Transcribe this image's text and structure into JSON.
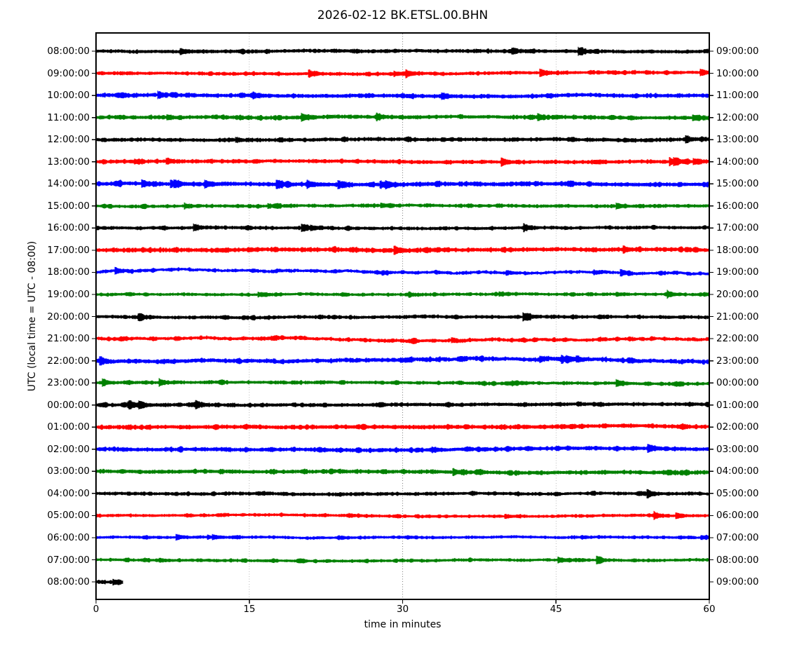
{
  "chart_data": {
    "type": "line",
    "subtype": "helicorder-dayplot-seismogram",
    "title": "2026-02-12 BK.ETSL.00.BHN",
    "date": "2026-02-12",
    "station": "BK.ETSL.00.BHN",
    "xlabel": "time in minutes",
    "ylabel": "UTC (local time = UTC - 08:00)",
    "x_range_minutes": [
      0,
      60
    ],
    "x_ticks": [
      0,
      15,
      30,
      45,
      60
    ],
    "x_gridlines_minutes": [
      15,
      30,
      45
    ],
    "grid_style": "dotted",
    "minutes_per_row": 60,
    "left_axis": "row start time (UTC)",
    "right_axis": "row end time (UTC)",
    "trace_color_cycle": [
      "#000000",
      "#ff0000",
      "#0000ff",
      "#008000"
    ],
    "content": "continuous background seismic noise bands; no large earthquake signals",
    "rows": [
      {
        "start_utc": "08:00:00",
        "end_utc": "09:00:00",
        "color": "#000000",
        "coverage_minutes": 60
      },
      {
        "start_utc": "09:00:00",
        "end_utc": "10:00:00",
        "color": "#ff0000",
        "coverage_minutes": 60
      },
      {
        "start_utc": "10:00:00",
        "end_utc": "11:00:00",
        "color": "#0000ff",
        "coverage_minutes": 60
      },
      {
        "start_utc": "11:00:00",
        "end_utc": "12:00:00",
        "color": "#008000",
        "coverage_minutes": 60
      },
      {
        "start_utc": "12:00:00",
        "end_utc": "13:00:00",
        "color": "#000000",
        "coverage_minutes": 60
      },
      {
        "start_utc": "13:00:00",
        "end_utc": "14:00:00",
        "color": "#ff0000",
        "coverage_minutes": 60
      },
      {
        "start_utc": "14:00:00",
        "end_utc": "15:00:00",
        "color": "#0000ff",
        "coverage_minutes": 60,
        "character": "short noise bursts"
      },
      {
        "start_utc": "15:00:00",
        "end_utc": "16:00:00",
        "color": "#008000",
        "coverage_minutes": 60
      },
      {
        "start_utc": "16:00:00",
        "end_utc": "17:00:00",
        "color": "#000000",
        "coverage_minutes": 60
      },
      {
        "start_utc": "17:00:00",
        "end_utc": "18:00:00",
        "color": "#ff0000",
        "coverage_minutes": 60
      },
      {
        "start_utc": "18:00:00",
        "end_utc": "19:00:00",
        "color": "#0000ff",
        "coverage_minutes": 60,
        "character": "elevated low-frequency wander"
      },
      {
        "start_utc": "19:00:00",
        "end_utc": "20:00:00",
        "color": "#008000",
        "coverage_minutes": 60,
        "character": "short noise bursts"
      },
      {
        "start_utc": "20:00:00",
        "end_utc": "21:00:00",
        "color": "#000000",
        "coverage_minutes": 60
      },
      {
        "start_utc": "21:00:00",
        "end_utc": "22:00:00",
        "color": "#ff0000",
        "coverage_minutes": 60,
        "character": "elevated low-frequency wander"
      },
      {
        "start_utc": "22:00:00",
        "end_utc": "23:00:00",
        "color": "#0000ff",
        "coverage_minutes": 60,
        "character": "elevated low-frequency wander"
      },
      {
        "start_utc": "23:00:00",
        "end_utc": "00:00:00",
        "color": "#008000",
        "coverage_minutes": 60
      },
      {
        "start_utc": "00:00:00",
        "end_utc": "01:00:00",
        "color": "#000000",
        "coverage_minutes": 60
      },
      {
        "start_utc": "01:00:00",
        "end_utc": "02:00:00",
        "color": "#ff0000",
        "coverage_minutes": 60
      },
      {
        "start_utc": "02:00:00",
        "end_utc": "03:00:00",
        "color": "#0000ff",
        "coverage_minutes": 60
      },
      {
        "start_utc": "03:00:00",
        "end_utc": "04:00:00",
        "color": "#008000",
        "coverage_minutes": 60
      },
      {
        "start_utc": "04:00:00",
        "end_utc": "05:00:00",
        "color": "#000000",
        "coverage_minutes": 60
      },
      {
        "start_utc": "05:00:00",
        "end_utc": "06:00:00",
        "color": "#ff0000",
        "coverage_minutes": 60
      },
      {
        "start_utc": "06:00:00",
        "end_utc": "07:00:00",
        "color": "#0000ff",
        "coverage_minutes": 60
      },
      {
        "start_utc": "07:00:00",
        "end_utc": "08:00:00",
        "color": "#008000",
        "coverage_minutes": 60
      },
      {
        "start_utc": "08:00:00",
        "end_utc": "09:00:00",
        "color": "#000000",
        "coverage_minutes": 2.6
      }
    ]
  }
}
